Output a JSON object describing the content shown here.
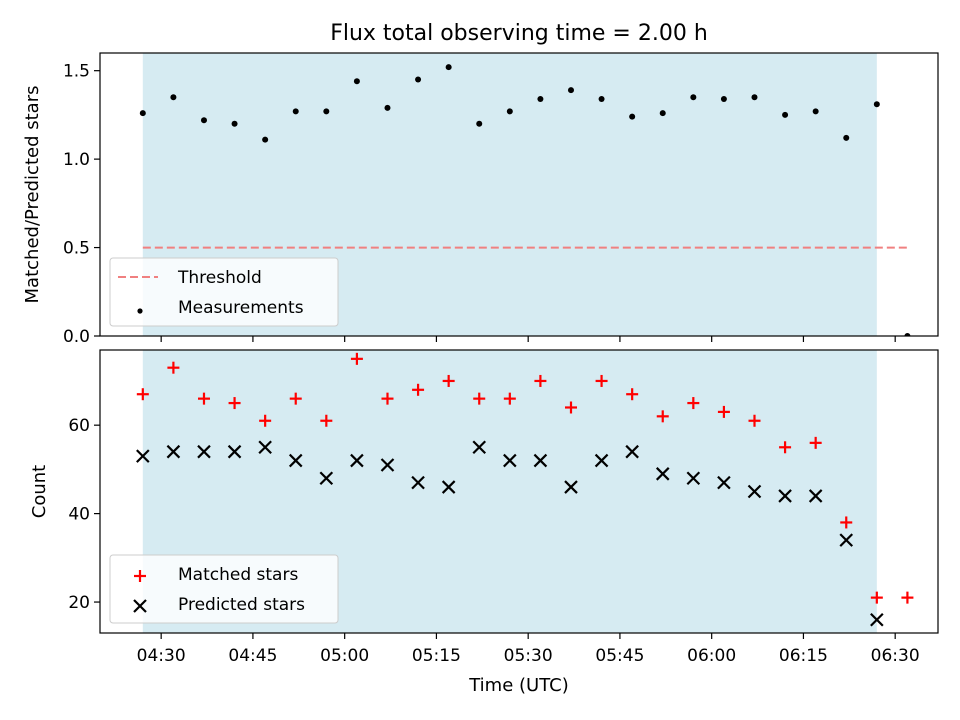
{
  "figure": {
    "title": "Flux total observing time = 2.00 h",
    "xlabel": "Time (UTC)",
    "x_ticks": [
      "04:30",
      "04:45",
      "05:00",
      "05:15",
      "05:30",
      "05:45",
      "06:00",
      "06:15",
      "06:30"
    ],
    "shade_color": "#add8e6",
    "shade_range": [
      "04:27",
      "06:27"
    ]
  },
  "chart_data": [
    {
      "type": "scatter",
      "ylabel": "Matched/Predicted stars",
      "ylim": [
        0,
        1.6
      ],
      "y_ticks": [
        "0.0",
        "0.5",
        "1.0",
        "1.5"
      ],
      "legend_position": "lower-left",
      "threshold": {
        "name": "Threshold",
        "value": 0.5,
        "x_range": [
          "04:27",
          "06:32"
        ],
        "color": "#f08080",
        "style": "dashed"
      },
      "series": [
        {
          "name": "Measurements",
          "color": "#000000",
          "marker": "dot",
          "x": [
            "04:27",
            "04:32",
            "04:37",
            "04:42",
            "04:47",
            "04:52",
            "04:57",
            "05:02",
            "05:07",
            "05:12",
            "05:17",
            "05:22",
            "05:27",
            "05:32",
            "05:37",
            "05:42",
            "05:47",
            "05:52",
            "05:57",
            "06:02",
            "06:07",
            "06:12",
            "06:17",
            "06:22",
            "06:27",
            "06:32"
          ],
          "y": [
            1.26,
            1.35,
            1.22,
            1.2,
            1.11,
            1.27,
            1.27,
            1.44,
            1.29,
            1.45,
            1.52,
            1.2,
            1.27,
            1.34,
            1.39,
            1.34,
            1.24,
            1.26,
            1.35,
            1.34,
            1.35,
            1.25,
            1.27,
            1.12,
            1.31,
            0.0
          ]
        }
      ]
    },
    {
      "type": "scatter",
      "ylabel": "Count",
      "ylim": [
        13,
        77
      ],
      "y_ticks": [
        "20",
        "40",
        "60"
      ],
      "legend_position": "lower-left",
      "series": [
        {
          "name": "Matched stars",
          "color": "#ff0000",
          "marker": "plus",
          "x": [
            "04:27",
            "04:32",
            "04:37",
            "04:42",
            "04:47",
            "04:52",
            "04:57",
            "05:02",
            "05:07",
            "05:12",
            "05:17",
            "05:22",
            "05:27",
            "05:32",
            "05:37",
            "05:42",
            "05:47",
            "05:52",
            "05:57",
            "06:02",
            "06:07",
            "06:12",
            "06:17",
            "06:22",
            "06:27",
            "06:32"
          ],
          "y": [
            67,
            73,
            66,
            65,
            61,
            66,
            61,
            75,
            66,
            68,
            70,
            66,
            66,
            70,
            64,
            70,
            67,
            62,
            65,
            63,
            61,
            55,
            56,
            38,
            21,
            21
          ]
        },
        {
          "name": "Predicted stars",
          "color": "#000000",
          "marker": "x",
          "x": [
            "04:27",
            "04:32",
            "04:37",
            "04:42",
            "04:47",
            "04:52",
            "04:57",
            "05:02",
            "05:07",
            "05:12",
            "05:17",
            "05:22",
            "05:27",
            "05:32",
            "05:37",
            "05:42",
            "05:47",
            "05:52",
            "05:57",
            "06:02",
            "06:07",
            "06:12",
            "06:17",
            "06:22",
            "06:27"
          ],
          "y": [
            53,
            54,
            54,
            54,
            55,
            52,
            48,
            52,
            51,
            47,
            46,
            55,
            52,
            52,
            46,
            52,
            54,
            49,
            48,
            47,
            45,
            44,
            44,
            34,
            16
          ]
        }
      ]
    }
  ]
}
